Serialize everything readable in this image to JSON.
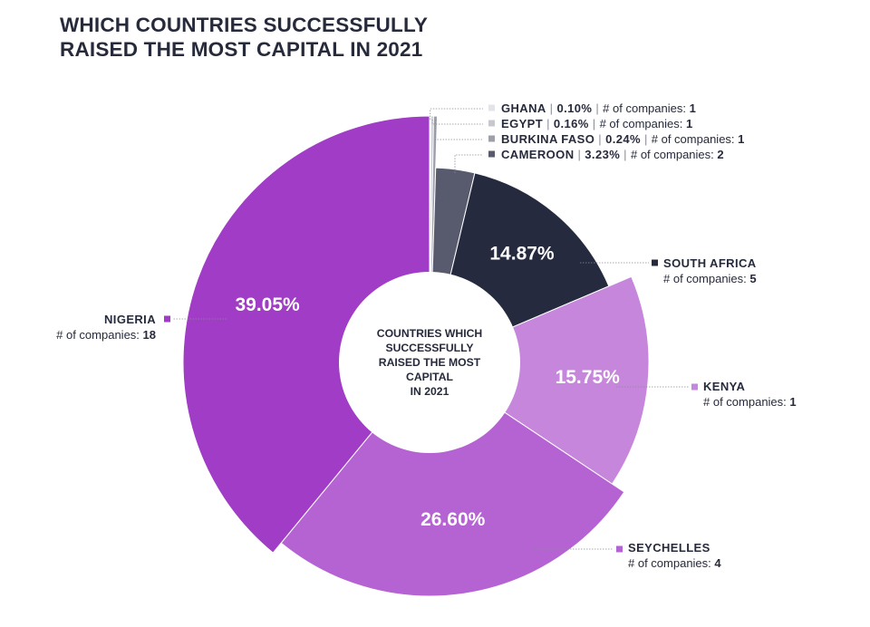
{
  "title_lines": [
    "WHICH COUNTRIES SUCCESSFULLY",
    "RAISED THE MOST CAPITAL IN 2021"
  ],
  "center_lines": [
    "COUNTRIES WHICH",
    "SUCCESSFULLY",
    "RAISED THE MOST",
    "CAPITAL",
    "IN 2021"
  ],
  "companies_prefix": "# of companies: ",
  "chart_data": {
    "type": "pie",
    "variant": "donut",
    "title": "WHICH COUNTRIES SUCCESSFULLY RAISED THE MOST CAPITAL IN 2021",
    "unit": "%",
    "slices": [
      {
        "label": "GHANA",
        "value": 0.1,
        "value_text": "0.10%",
        "companies": 1,
        "color": "#e4e4e8"
      },
      {
        "label": "EGYPT",
        "value": 0.16,
        "value_text": "0.16%",
        "companies": 1,
        "color": "#c7c8cf"
      },
      {
        "label": "BURKINA FASO",
        "value": 0.24,
        "value_text": "0.24%",
        "companies": 1,
        "color": "#9d9fab"
      },
      {
        "label": "CAMEROON",
        "value": 3.23,
        "value_text": "3.23%",
        "companies": 2,
        "color": "#585a6d"
      },
      {
        "label": "SOUTH AFRICA",
        "value": 14.87,
        "value_text": "14.87%",
        "companies": 5,
        "color": "#262a3f"
      },
      {
        "label": "KENYA",
        "value": 15.75,
        "value_text": "15.75%",
        "companies": 1,
        "color": "#c586dc"
      },
      {
        "label": "SEYCHELLES",
        "value": 26.6,
        "value_text": "26.60%",
        "companies": 4,
        "color": "#b563d2"
      },
      {
        "label": "NIGERIA",
        "value": 39.05,
        "value_text": "39.05%",
        "companies": 18,
        "color": "#a03cc5"
      }
    ]
  }
}
